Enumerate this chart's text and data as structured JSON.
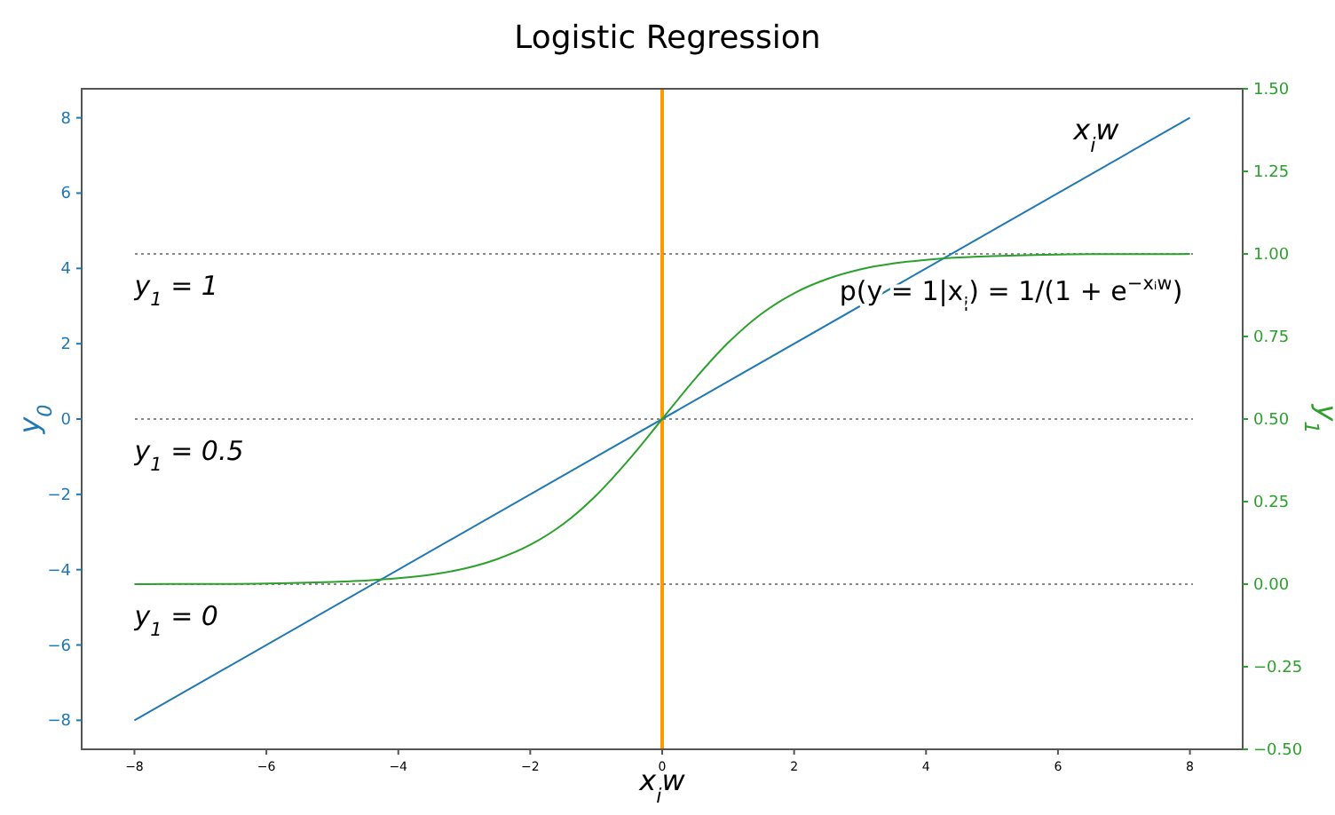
{
  "chart_data": {
    "type": "line",
    "title": "Logistic Regression",
    "xlabel": "x$_{i}$w",
    "ylabel": "y$_{0}$",
    "y2label": "y$_{1}$",
    "xlim": [
      -8.8,
      8.8
    ],
    "ylim": [
      -8.77,
      8.77
    ],
    "y2lim": [
      -0.5,
      1.5
    ],
    "xticks": [
      {
        "value": -8,
        "label": "−8"
      },
      {
        "value": -6,
        "label": "−6"
      },
      {
        "value": -4,
        "label": "−4"
      },
      {
        "value": -2,
        "label": "−2"
      },
      0,
      2,
      4,
      6,
      8
    ],
    "yticks": [
      {
        "value": -8,
        "label": "−8"
      },
      {
        "value": -6,
        "label": "−6"
      },
      {
        "value": -4,
        "label": "−4"
      },
      {
        "value": -2,
        "label": "−2"
      },
      0,
      2,
      4,
      6,
      8
    ],
    "y2ticks": [
      {
        "value": -0.5,
        "label": "−0.50"
      },
      {
        "value": -0.25,
        "label": "−0.25"
      },
      {
        "value": 0,
        "label": "0.00"
      },
      0.25,
      {
        "value": 0.5,
        "label": "0.50"
      },
      0.75,
      {
        "value": 1,
        "label": "1.00"
      },
      1.25,
      {
        "value": 1.5,
        "label": "1.50"
      }
    ],
    "grid": false,
    "marker": "none",
    "line_style": "solid",
    "series": [
      {
        "name": "x$_{i}$w",
        "color": "#1f77b4",
        "x": [
          -8,
          8
        ],
        "values": [
          -8,
          8
        ]
      },
      {
        "name": "p(y = 1|x$_{i}$) = 1/(1 + e$^{−xᵢw}$)",
        "color": "#2ca02c",
        "axis": "y2",
        "x": [
          -8,
          -7.5,
          -7,
          -6.5,
          -6,
          -5.5,
          -5,
          -4.5,
          -4,
          -3.5,
          -3,
          -2.5,
          -2,
          -1.5,
          -1,
          -0.5,
          0,
          0.5,
          1,
          1.5,
          2,
          2.5,
          3,
          3.5,
          4,
          4.5,
          5,
          5.5,
          6,
          6.5,
          7,
          7.5,
          8
        ],
        "values": [
          0.0,
          0.001,
          0.001,
          0.001,
          0.002,
          0.004,
          0.007,
          0.011,
          0.018,
          0.029,
          0.047,
          0.076,
          0.119,
          0.182,
          0.269,
          0.378,
          0.5,
          0.622,
          0.731,
          0.818,
          0.881,
          0.924,
          0.953,
          0.971,
          0.982,
          0.989,
          0.993,
          0.996,
          0.998,
          0.999,
          0.999,
          0.999,
          1.0
        ]
      }
    ],
    "ref_lines": [
      {
        "axis": "x",
        "value": 0,
        "color": "#ff9900",
        "line_style": "solid"
      },
      {
        "axis": "y2",
        "value": 1,
        "label": "y$_{1}$ = 1",
        "color": "#888888",
        "line_style": "dotted"
      },
      {
        "axis": "y2",
        "value": 0.5,
        "label": "y$_{1}$ = 0.5",
        "color": "#888888",
        "line_style": "dotted"
      },
      {
        "axis": "y2",
        "value": 0,
        "label": "y$_{1}$ = 0",
        "color": "#888888",
        "line_style": "dotted"
      }
    ]
  }
}
